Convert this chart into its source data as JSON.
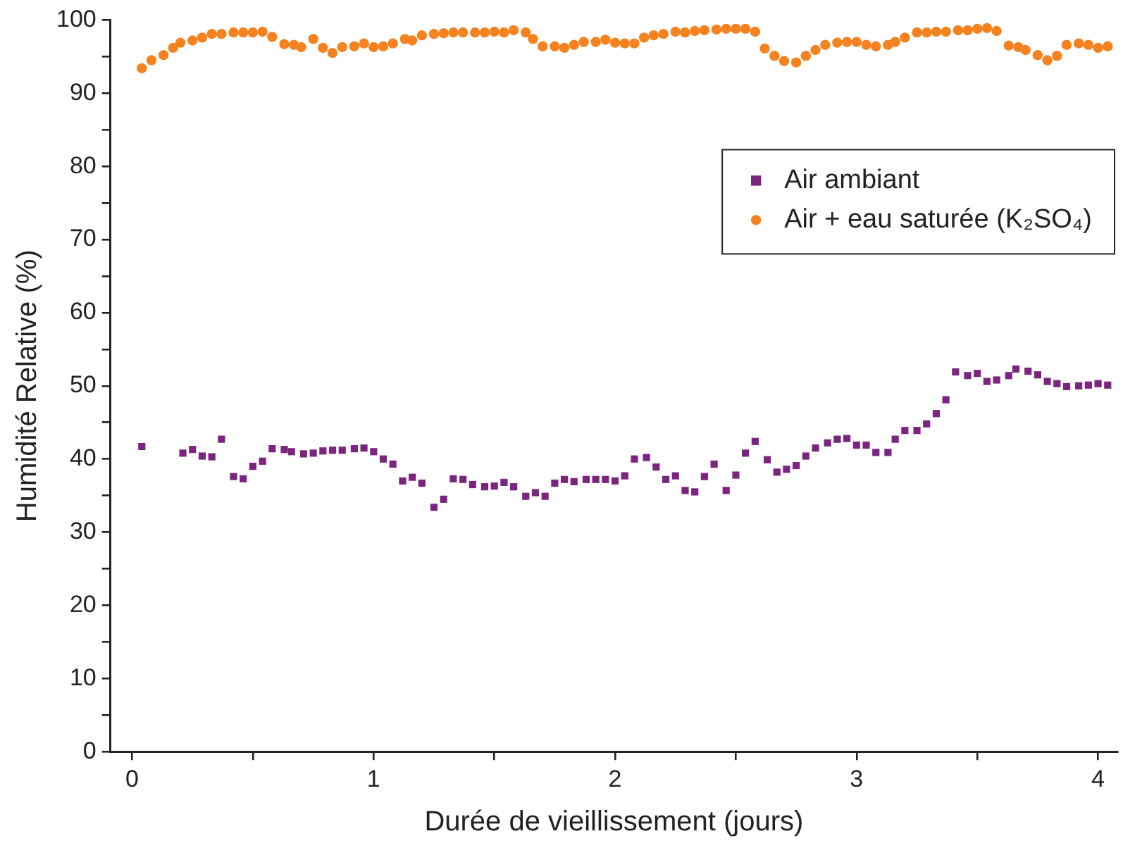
{
  "chart_data": {
    "type": "scatter",
    "xlabel": "Durée de vieillissement (jours)",
    "ylabel": "Humidité Relative (%)",
    "xlim": [
      -0.09,
      4.08
    ],
    "xticks": [
      0,
      {
        "value": 0.5,
        "label": null
      },
      1,
      {
        "value": 1.5,
        "label": null
      },
      2,
      {
        "value": 2.5,
        "label": null
      },
      3,
      {
        "value": 3.5,
        "label": null
      },
      4
    ],
    "ylim": [
      0,
      100
    ],
    "yticks": [
      0,
      {
        "value": 5,
        "label": null
      },
      10,
      {
        "value": 15,
        "label": null
      },
      20,
      {
        "value": 25,
        "label": null
      },
      30,
      {
        "value": 35,
        "label": null
      },
      40,
      {
        "value": 45,
        "label": null
      },
      50,
      {
        "value": 55,
        "label": null
      },
      60,
      {
        "value": 65,
        "label": null
      },
      70,
      {
        "value": 75,
        "label": null
      },
      80,
      {
        "value": 85,
        "label": null
      },
      90,
      {
        "value": 95,
        "label": null
      },
      100
    ],
    "grid": false,
    "legend": "top right",
    "series": [
      {
        "name": "Air ambiant",
        "color": "#7b2580",
        "marker": "square",
        "x": [
          0.04,
          0.21,
          0.25,
          0.29,
          0.33,
          0.37,
          0.42,
          0.46,
          0.5,
          0.54,
          0.58,
          0.63,
          0.66,
          0.71,
          0.75,
          0.79,
          0.83,
          0.87,
          0.92,
          0.96,
          1.0,
          1.04,
          1.08,
          1.12,
          1.16,
          1.2,
          1.25,
          1.29,
          1.33,
          1.37,
          1.41,
          1.46,
          1.5,
          1.54,
          1.58,
          1.63,
          1.67,
          1.71,
          1.75,
          1.79,
          1.83,
          1.88,
          1.92,
          1.96,
          2.0,
          2.04,
          2.08,
          2.13,
          2.17,
          2.21,
          2.25,
          2.29,
          2.33,
          2.37,
          2.41,
          2.46,
          2.5,
          2.54,
          2.58,
          2.63,
          2.67,
          2.71,
          2.75,
          2.79,
          2.83,
          2.88,
          2.92,
          2.96,
          3.0,
          3.04,
          3.08,
          3.13,
          3.16,
          3.2,
          3.25,
          3.29,
          3.33,
          3.37,
          3.41,
          3.46,
          3.5,
          3.54,
          3.58,
          3.63,
          3.66,
          3.71,
          3.75,
          3.79,
          3.83,
          3.87,
          3.92,
          3.96,
          4.0,
          4.04
        ],
        "values": [
          41.7,
          40.8,
          41.3,
          40.4,
          40.3,
          42.7,
          37.6,
          37.3,
          39.0,
          39.7,
          41.4,
          41.3,
          41.0,
          40.7,
          40.8,
          41.1,
          41.2,
          41.2,
          41.4,
          41.5,
          41.0,
          40.0,
          39.3,
          37.0,
          37.5,
          36.7,
          33.4,
          34.5,
          37.3,
          37.2,
          36.5,
          36.2,
          36.3,
          36.8,
          36.2,
          34.9,
          35.4,
          34.9,
          36.7,
          37.2,
          36.9,
          37.2,
          37.2,
          37.2,
          37.0,
          37.7,
          40.0,
          40.2,
          38.9,
          37.2,
          37.7,
          35.7,
          35.5,
          37.6,
          39.3,
          35.7,
          37.8,
          40.8,
          42.4,
          39.9,
          38.2,
          38.6,
          39.1,
          40.4,
          41.5,
          42.2,
          42.7,
          42.8,
          41.9,
          41.9,
          40.9,
          40.9,
          42.7,
          43.9,
          43.9,
          44.8,
          46.2,
          48.1,
          51.9,
          51.4,
          51.7,
          50.6,
          50.8,
          51.4,
          52.3,
          52.0,
          51.5,
          50.6,
          50.3,
          49.9,
          50.0,
          50.1,
          50.3,
          50.1
        ]
      },
      {
        "name": "Air + eau saturée (K₂SO₄)",
        "color": "#f5821f",
        "marker": "circle",
        "x": [
          0.04,
          0.08,
          0.13,
          0.17,
          0.2,
          0.25,
          0.29,
          0.33,
          0.37,
          0.42,
          0.46,
          0.5,
          0.54,
          0.58,
          0.63,
          0.67,
          0.7,
          0.75,
          0.79,
          0.83,
          0.87,
          0.92,
          0.96,
          1.0,
          1.04,
          1.08,
          1.13,
          1.16,
          1.2,
          1.25,
          1.29,
          1.33,
          1.37,
          1.42,
          1.46,
          1.5,
          1.54,
          1.58,
          1.63,
          1.66,
          1.7,
          1.75,
          1.79,
          1.83,
          1.87,
          1.92,
          1.96,
          2.0,
          2.04,
          2.08,
          2.12,
          2.16,
          2.2,
          2.25,
          2.29,
          2.33,
          2.37,
          2.42,
          2.46,
          2.5,
          2.54,
          2.58,
          2.62,
          2.66,
          2.7,
          2.75,
          2.79,
          2.83,
          2.87,
          2.92,
          2.96,
          3.0,
          3.04,
          3.08,
          3.13,
          3.16,
          3.2,
          3.25,
          3.29,
          3.33,
          3.37,
          3.42,
          3.46,
          3.5,
          3.54,
          3.58,
          3.63,
          3.67,
          3.7,
          3.75,
          3.79,
          3.83,
          3.87,
          3.92,
          3.96,
          4.0,
          4.04
        ],
        "values": [
          93.4,
          94.5,
          95.2,
          96.2,
          96.9,
          97.2,
          97.6,
          98.1,
          98.1,
          98.3,
          98.3,
          98.3,
          98.4,
          97.7,
          96.7,
          96.6,
          96.3,
          97.4,
          96.2,
          95.5,
          96.3,
          96.4,
          96.8,
          96.3,
          96.4,
          96.8,
          97.4,
          97.2,
          97.9,
          98.1,
          98.2,
          98.3,
          98.3,
          98.3,
          98.3,
          98.4,
          98.3,
          98.6,
          98.3,
          97.4,
          96.4,
          96.4,
          96.2,
          96.6,
          97.0,
          97.0,
          97.3,
          96.9,
          96.8,
          96.8,
          97.6,
          97.9,
          98.1,
          98.4,
          98.3,
          98.5,
          98.6,
          98.7,
          98.8,
          98.8,
          98.8,
          98.4,
          96.1,
          95.1,
          94.4,
          94.2,
          95.1,
          95.9,
          96.6,
          96.9,
          97.0,
          97.0,
          96.6,
          96.4,
          96.6,
          97.0,
          97.6,
          98.3,
          98.3,
          98.4,
          98.4,
          98.6,
          98.6,
          98.8,
          98.9,
          98.5,
          96.5,
          96.3,
          95.9,
          95.2,
          94.5,
          95.1,
          96.6,
          96.8,
          96.6,
          96.2,
          96.4
        ]
      }
    ]
  }
}
